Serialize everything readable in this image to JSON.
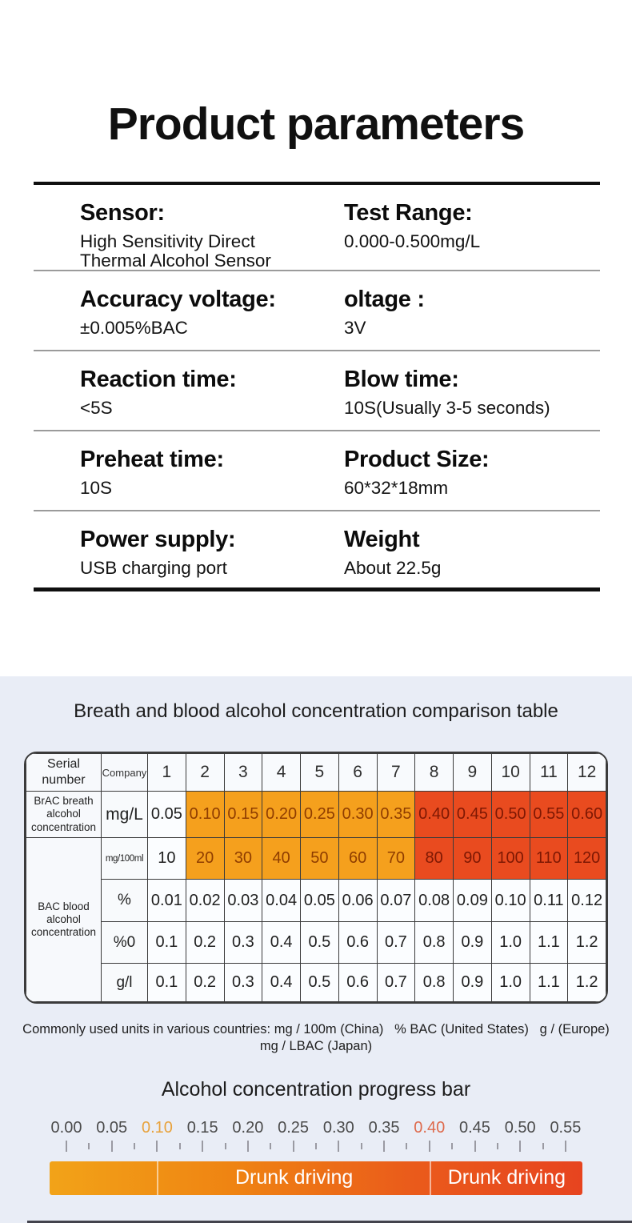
{
  "title": "Product parameters",
  "specs": {
    "rows": [
      {
        "left_label": "Sensor:",
        "left_value": "High Sensitivity Direct\nThermal Alcohol Sensor",
        "right_label": "Test Range:",
        "right_value": "0.000-0.500mg/L"
      },
      {
        "left_label": "Accuracy voltage:",
        "left_value": "±0.005%BAC",
        "right_label": "oltage :",
        "right_value": "3V"
      },
      {
        "left_label": "Reaction time:",
        "left_value": "<5S",
        "right_label": "Blow time:",
        "right_value": "10S(Usually 3-5 seconds)"
      },
      {
        "left_label": "Preheat time:",
        "left_value": "10S",
        "right_label": "Product Size:",
        "right_value": "60*32*18mm"
      },
      {
        "left_label": "Power supply:",
        "left_value": "USB charging port",
        "right_label": "Weight",
        "right_value": "About 22.5g"
      }
    ]
  },
  "comparison": {
    "heading": "Breath and blood alcohol concentration comparison table",
    "corner_header": "Serial number",
    "unit_header": "Company",
    "col_numbers": [
      "1",
      "2",
      "3",
      "4",
      "5",
      "6",
      "7",
      "8",
      "9",
      "10",
      "11",
      "12"
    ],
    "groups": [
      {
        "label": "BrAC breath alcohol concentration",
        "rows": [
          {
            "unit": "mg/L",
            "values": [
              "0.05",
              "0.10",
              "0.15",
              "0.20",
              "0.25",
              "0.30",
              "0.35",
              "0.40",
              "0.45",
              "0.50",
              "0.55",
              "0.60"
            ],
            "tint": [
              "none",
              "orange",
              "orange",
              "orange",
              "orange",
              "orange",
              "orange",
              "red",
              "red",
              "red",
              "red",
              "red"
            ]
          }
        ]
      },
      {
        "label": "BAC blood alcohol concentration",
        "rows": [
          {
            "unit": "mg/100ml",
            "values": [
              "10",
              "20",
              "30",
              "40",
              "50",
              "60",
              "70",
              "80",
              "90",
              "100",
              "110",
              "120"
            ],
            "tint": [
              "none",
              "orange",
              "orange",
              "orange",
              "orange",
              "orange",
              "orange",
              "red",
              "red",
              "red",
              "red",
              "red"
            ]
          },
          {
            "unit": "%",
            "values": [
              "0.01",
              "0.02",
              "0.03",
              "0.04",
              "0.05",
              "0.06",
              "0.07",
              "0.08",
              "0.09",
              "0.10",
              "0.11",
              "0.12"
            ],
            "tint": [
              "none",
              "none",
              "none",
              "none",
              "none",
              "none",
              "none",
              "none",
              "none",
              "none",
              "none",
              "none"
            ]
          },
          {
            "unit": "%0",
            "values": [
              "0.1",
              "0.2",
              "0.3",
              "0.4",
              "0.5",
              "0.6",
              "0.7",
              "0.8",
              "0.9",
              "1.0",
              "1.1",
              "1.2"
            ],
            "tint": [
              "none",
              "none",
              "none",
              "none",
              "none",
              "none",
              "none",
              "none",
              "none",
              "none",
              "none",
              "none"
            ]
          },
          {
            "unit": "g/l",
            "values": [
              "0.1",
              "0.2",
              "0.3",
              "0.4",
              "0.5",
              "0.6",
              "0.7",
              "0.8",
              "0.9",
              "1.0",
              "1.1",
              "1.2"
            ],
            "tint": [
              "none",
              "none",
              "none",
              "none",
              "none",
              "none",
              "none",
              "none",
              "none",
              "none",
              "none",
              "none"
            ]
          }
        ]
      }
    ],
    "note_line1": "Commonly used units in various countries: mg / 100m (China)   % BAC (United States)   g / (Europe)",
    "note_line2": "mg / LBAC (Japan)"
  },
  "progress": {
    "heading": "Alcohol concentration progress bar",
    "scale_step": 0.05,
    "scale_labels": [
      {
        "text": "0.00"
      },
      {
        "text": "0.05"
      },
      {
        "text": "0.10",
        "color": "amber"
      },
      {
        "text": "0.15"
      },
      {
        "text": "0.20"
      },
      {
        "text": "0.25"
      },
      {
        "text": "0.30"
      },
      {
        "text": "0.35"
      },
      {
        "text": "0.40",
        "color": "red"
      },
      {
        "text": "0.45"
      },
      {
        "text": "0.50"
      },
      {
        "text": "0.55"
      }
    ],
    "segments": [
      {
        "from": 0.0,
        "to": 0.1,
        "label": ""
      },
      {
        "from": 0.1,
        "to": 0.4,
        "label": "Drunk driving"
      },
      {
        "from": 0.4,
        "to": 0.6,
        "label": "Drunk driving"
      }
    ]
  },
  "colors": {
    "orange_cell": "#F5A01D",
    "red_cell": "#E94B1F",
    "orange_cell_text": "#8F3D00",
    "red_cell_text": "#7E1803",
    "section_bg": "#E9EDF6",
    "amber_scale_label": "#E8A23C",
    "red_scale_label": "#DE6A4C",
    "bar_gradient": [
      "#F2A318",
      "#EF8312",
      "#EA5B1B",
      "#E7441F"
    ]
  }
}
